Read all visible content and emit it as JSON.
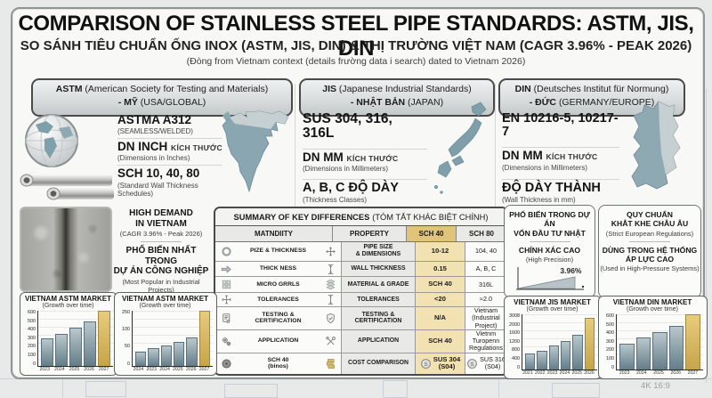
{
  "colors": {
    "accent_teal": "#7fa0ab",
    "accent_gold": "#d5b863",
    "highlight_tan": "#f2e2b2",
    "header_tan": "#e2c478",
    "panel_bg": "#f8f9f6",
    "border_dark": "#4a4a4a"
  },
  "header": {
    "title": "COMPARISON OF STAINLESS STEEL PIPE STANDARDS: ASTM, JIS, DIN",
    "subtitle": "SO SÁNH TIÊU CHUẨN ỐNG INOX (ASTM, JIS, DIN) & THỊ TRƯỜNG VIỆT NAM (CAGR 3.96% - PEAK 2026)",
    "note": "(Đòng from Vietnam context (details frường data i search) dated to Vietnam 2026)"
  },
  "columns": {
    "astm": {
      "name": "ASTM",
      "desc": "(American Society for Testing and Materials)",
      "line2_bold": "- MỸ",
      "line2_rest": "(USA/GLOBAL)",
      "icons": [
        "globe-icon",
        "steel-pipes-icon",
        "north-america-map"
      ],
      "items": [
        {
          "title": "ASTMA A312",
          "suffix": "",
          "sub": "(SEAMLESS/WELDED)"
        },
        {
          "title": "DN INCH",
          "suffix": "KÍCH THƯỚC",
          "sub": "(Dimensions in Inches)"
        },
        {
          "title": "SCH 10, 40, 80",
          "suffix": "",
          "sub": "(Standard Wall Thickness Schedules)"
        }
      ]
    },
    "jis": {
      "name": "JIS",
      "desc": "(Japanese Industrial Standards)",
      "line2_bold": "- NHẬT BẢN",
      "line2_rest": "(JAPAN)",
      "icons": [
        "japan-map"
      ],
      "items": [
        {
          "title": "SUS 304, 316, 316L",
          "suffix": "",
          "sub": ""
        },
        {
          "title": "DN MM",
          "suffix": "KÍCH THƯỚC",
          "sub": "(Dimensions in Millimeters)"
        },
        {
          "title": "A, B, C ĐỘ DÀY",
          "suffix": "",
          "sub": "(Thickness Classes)"
        }
      ]
    },
    "din": {
      "name": "DIN",
      "desc": "(Deutsches Institut für Normung)",
      "line2_bold": "- ĐỨC",
      "line2_rest": "(GERMANY/EUROPE)",
      "icons": [
        "germany-map"
      ],
      "items": [
        {
          "title": "EN 10216-5, 10217-7",
          "suffix": "",
          "sub": ""
        },
        {
          "title": "DN MM",
          "suffix": "KÍCH THƯỚC",
          "sub": "(Dimensions in Millimeters)"
        },
        {
          "title": "ĐỘ DÀY THÀNH",
          "suffix": "",
          "sub": "(Wall Thickness in mm)"
        }
      ]
    }
  },
  "panels": {
    "vietnam_demand": {
      "line1": "HIGH DEMAND\nIN VIETNAM",
      "sub1": "(CAGR 3.96% - Peak 2026)",
      "line2": "PHỔ BIẾN NHẤT TRONG\nDỰ ÁN CÔNG NGHIỆP",
      "sub2": "(Most Popular in Industrial Projects)"
    },
    "jis_popular": {
      "heading": "PHỔ BIẾN TRONG DỰ ÁN\nVỐN ĐẦU TƯ NHẬT",
      "line3": "CHÍNH XÁC CAO",
      "sub": "(High Precision)",
      "trend_label": "3.96%"
    },
    "din_regulations": {
      "line1": "QUY CHUẨN\nKHẮT KHE CHÂU ÂU",
      "sub1": "(Strict European Regulations)",
      "line2": "DÙNG TRONG HỆ THỐNG\nÁP LỰC CAO",
      "sub2": "(Used in High-Pressure Systems)"
    }
  },
  "summary_table": {
    "title": "SUMMARY OF KEY DIFFERENCES",
    "title_suffix": "(TÓM TẮT KHÁC BIỆT CHÍNH)",
    "headers": [
      "MATNDIITY",
      "PROPERTY",
      "SCH 40",
      "SCH 80"
    ],
    "rows": [
      {
        "left_icon": "ring-icon",
        "label": "PIZE & THICKNESS",
        "right_icon": "move-arrows-icon",
        "property": "PIPE SIZE\n& DIMENSIONS",
        "sch40": "10-12",
        "sch80": "104, 40"
      },
      {
        "left_icon": "block-arrow-right-icon",
        "label": "THICK NESS",
        "right_icon": "vertical-arrows-icon",
        "property": "WALL THICKNESS",
        "sch40": "0.15",
        "sch80": "A, B, C"
      },
      {
        "left_icon": "cube-grid-icon",
        "label": "MICRO GRRLS",
        "right_icon": "layers-icon",
        "property": "MATERIAL & GRADE",
        "sch40": "SCH 40",
        "sch80": "316L"
      },
      {
        "left_icon": "tolerance-cross-icon",
        "label": "TOLERANCES",
        "right_icon": "height-arrow-icon",
        "property": "TOLERANCES",
        "sch40": "<20",
        "sch80": "≈2.0"
      },
      {
        "left_icon": "certificate-icon",
        "label": "TESTING &\nCERTIFICATION",
        "right_icon": "shield-check-icon",
        "property": "TESTING &\nCERTIFICATION",
        "sch40": "N/A",
        "sch80": "Vietnam\n(Industrial Project)"
      },
      {
        "left_icon": "gears-icon",
        "label": "APPLICATION",
        "right_icon": "tools-icon",
        "property": "APPLICATION",
        "sch40": "SCH 40",
        "sch80": "Vietnm Turopenn\nRegulations"
      },
      {
        "left_icon": "pipe-flange-icon",
        "label": "SCH 40\n(binos)",
        "right_icon": "money-icon",
        "property": "COST COMPARISON",
        "sch40": "SUS 304\n(S04)",
        "sch80": "SUS 316\n(S04)",
        "sch40_icon": "coin-icon",
        "sch80_icon": "coin-icon"
      }
    ]
  },
  "chart_data": [
    {
      "id": "astm_a",
      "type": "bar",
      "title": "VIETNAM ASTM MARKET",
      "subtitle": "(Growth over time)",
      "categories": [
        "2023",
        "2024",
        "2025",
        "2026",
        "2027"
      ],
      "values": [
        285,
        340,
        410,
        480,
        585
      ],
      "yticks": [
        0,
        100,
        200,
        300,
        400,
        500,
        600
      ],
      "ymax": 600,
      "ylabel": "",
      "xlabel": "",
      "highlight_last_bar": true,
      "grid": true
    },
    {
      "id": "astm_b",
      "type": "bar",
      "title": "VIETNAM ASTM MARKET",
      "subtitle": "(Growth over time)",
      "categories": [
        "2024",
        "2023",
        "2024",
        "2025",
        "2026",
        "2027"
      ],
      "values": [
        60,
        75,
        90,
        105,
        125,
        245
      ],
      "yticks": [
        0,
        50,
        100,
        250
      ],
      "ymax": 250,
      "ylabel": "",
      "xlabel": "",
      "highlight_last_bar": true,
      "grid": true
    },
    {
      "id": "jis",
      "type": "bar",
      "title": "VIETNAM JIS MARKET",
      "subtitle": "(Growth over time)",
      "categories": [
        "2021",
        "2022",
        "2023",
        "2024",
        "2025",
        "2026"
      ],
      "values": [
        800,
        1000,
        1250,
        1500,
        1850,
        2800
      ],
      "yticks": [
        0,
        400,
        800,
        1200,
        1600,
        2000,
        3008
      ],
      "ymax": 3008,
      "ylabel": "",
      "xlabel": "",
      "highlight_last_bar": true,
      "grid": true
    },
    {
      "id": "din",
      "type": "bar",
      "title": "VIETNAM DIN MARKET",
      "subtitle": "(Growth over time)",
      "categories": [
        "2023",
        "2024",
        "2025",
        "2026",
        "2027"
      ],
      "values": [
        270,
        340,
        400,
        465,
        585
      ],
      "yticks": [
        0,
        100,
        200,
        300,
        400,
        500,
        600
      ],
      "ymax": 600,
      "ylabel": "",
      "xlabel": "",
      "highlight_last_bar": true,
      "grid": true
    },
    {
      "id": "precision_trend",
      "type": "area",
      "title": "",
      "label": "3.96%",
      "description": "rising precision trend wedge",
      "x": [
        0,
        1
      ],
      "y": [
        0,
        3.96
      ]
    }
  ],
  "watermark": "4K 16:9"
}
